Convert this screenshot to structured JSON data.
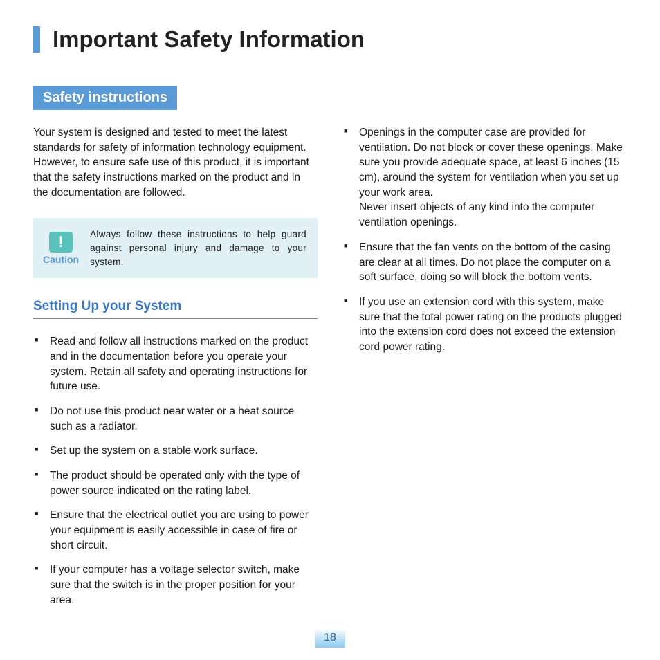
{
  "page_title": "Important Safety Information",
  "section_header": "Safety instructions",
  "intro": "Your system is designed and tested to meet the latest standards for safety of information technology equipment. However, to ensure safe use of this product, it is important that the safety instructions marked on the product and in the documentation are followed.",
  "caution": {
    "icon_glyph": "!",
    "label": "Caution",
    "text": "Always follow these instructions to help guard against personal injury and damage to your system."
  },
  "sub_heading": "Setting Up your System",
  "left_bullets": [
    "Read and follow all instructions marked on the product and in the documentation before you operate your system. Retain all safety and operating instructions for future use.",
    "Do not use this product near water or a heat source such as a radiator.",
    "Set up the system on a stable work surface.",
    "The product should be operated only with the type of power source indicated on the rating label.",
    "Ensure that the electrical outlet you are using to power your equipment is easily accessible in case of fire or short circuit.",
    "If your computer has a voltage selector switch, make sure that the switch is in the proper position for your area."
  ],
  "right_bullets": [
    "Openings in the computer case are provided for ventilation. Do not block or cover these openings. Make sure you provide adequate space, at least 6 inches (15 cm), around the system for ventilation when you set up your work area.\nNever insert objects of any kind into the computer ventilation openings.",
    "Ensure that the fan vents on the bottom of the casing are clear at all times. Do not place the computer on a soft surface, doing so will block the bottom vents.",
    "If you use an extension cord with this system, make sure that the total power rating on the products plugged into the extension cord does not exceed the extension cord power rating."
  ],
  "page_number": "18",
  "colors": {
    "accent": "#5b9bd5",
    "heading_blue": "#3c78c0",
    "caution_bg": "#e0f0f4",
    "caution_icon_bg": "#5ac2ba",
    "text": "#1a1a1a"
  }
}
